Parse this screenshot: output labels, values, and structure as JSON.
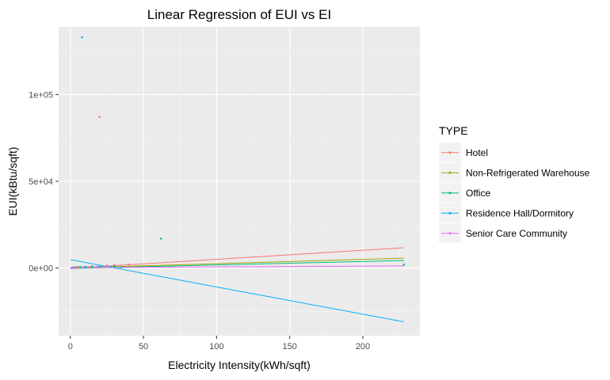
{
  "chart_data": {
    "type": "scatter",
    "title": "Linear Regression of EUI vs EI",
    "xlabel": "Electricity Intensity(kWh/sqft)",
    "ylabel": "EUI(kBtu/sqft)",
    "xlim": [
      -8,
      239
    ],
    "ylim": [
      -39000,
      139000
    ],
    "x_ticks": [
      0,
      50,
      100,
      150,
      200
    ],
    "x_tick_labels": [
      "0",
      "50",
      "100",
      "150",
      "200"
    ],
    "y_ticks": [
      0,
      50000,
      100000
    ],
    "y_tick_labels": [
      "0e+00",
      "5e+04",
      "1e+05"
    ],
    "grid": true,
    "background": "#EBEBEB",
    "legend": {
      "title": "TYPE",
      "position": "right"
    },
    "series": [
      {
        "name": "Hotel",
        "color": "#F8766D",
        "points": [
          [
            20,
            87000
          ],
          [
            1,
            200
          ],
          [
            3,
            400
          ],
          [
            5,
            500
          ],
          [
            8,
            300
          ],
          [
            12,
            700
          ],
          [
            15,
            900
          ],
          [
            25,
            1400
          ],
          [
            30,
            1600
          ],
          [
            40,
            2000
          ]
        ],
        "fit": [
          [
            0,
            -200
          ],
          [
            228,
            11700
          ]
        ]
      },
      {
        "name": "Non-Refrigerated Warehouse",
        "color": "#A3A500",
        "points": [
          [
            2,
            100
          ],
          [
            4,
            200
          ],
          [
            6,
            300
          ],
          [
            10,
            500
          ],
          [
            14,
            600
          ],
          [
            18,
            700
          ]
        ],
        "fit": [
          [
            0,
            0
          ],
          [
            228,
            5700
          ]
        ]
      },
      {
        "name": "Office",
        "color": "#00BF7D",
        "points": [
          [
            62,
            17000
          ],
          [
            1,
            100
          ],
          [
            3,
            300
          ],
          [
            5,
            300
          ],
          [
            7,
            500
          ],
          [
            10,
            600
          ],
          [
            20,
            800
          ],
          [
            30,
            900
          ],
          [
            228,
            2000
          ]
        ],
        "fit": [
          [
            0,
            -200
          ],
          [
            228,
            4300
          ]
        ]
      },
      {
        "name": "Residence Hall/Dormitory",
        "color": "#00B0F6",
        "points": [
          [
            8,
            133000
          ],
          [
            2,
            300
          ],
          [
            5,
            600
          ],
          [
            10,
            700
          ],
          [
            15,
            800
          ],
          [
            20,
            900
          ],
          [
            28,
            700
          ],
          [
            35,
            400
          ]
        ],
        "fit": [
          [
            0,
            4800
          ],
          [
            228,
            -31000
          ]
        ]
      },
      {
        "name": "Senior Care Community",
        "color": "#E76BF3",
        "points": [
          [
            1,
            100
          ],
          [
            3,
            200
          ],
          [
            5,
            300
          ],
          [
            8,
            400
          ],
          [
            12,
            500
          ],
          [
            18,
            600
          ],
          [
            25,
            700
          ]
        ],
        "fit": [
          [
            0,
            200
          ],
          [
            228,
            1200
          ]
        ]
      }
    ]
  }
}
